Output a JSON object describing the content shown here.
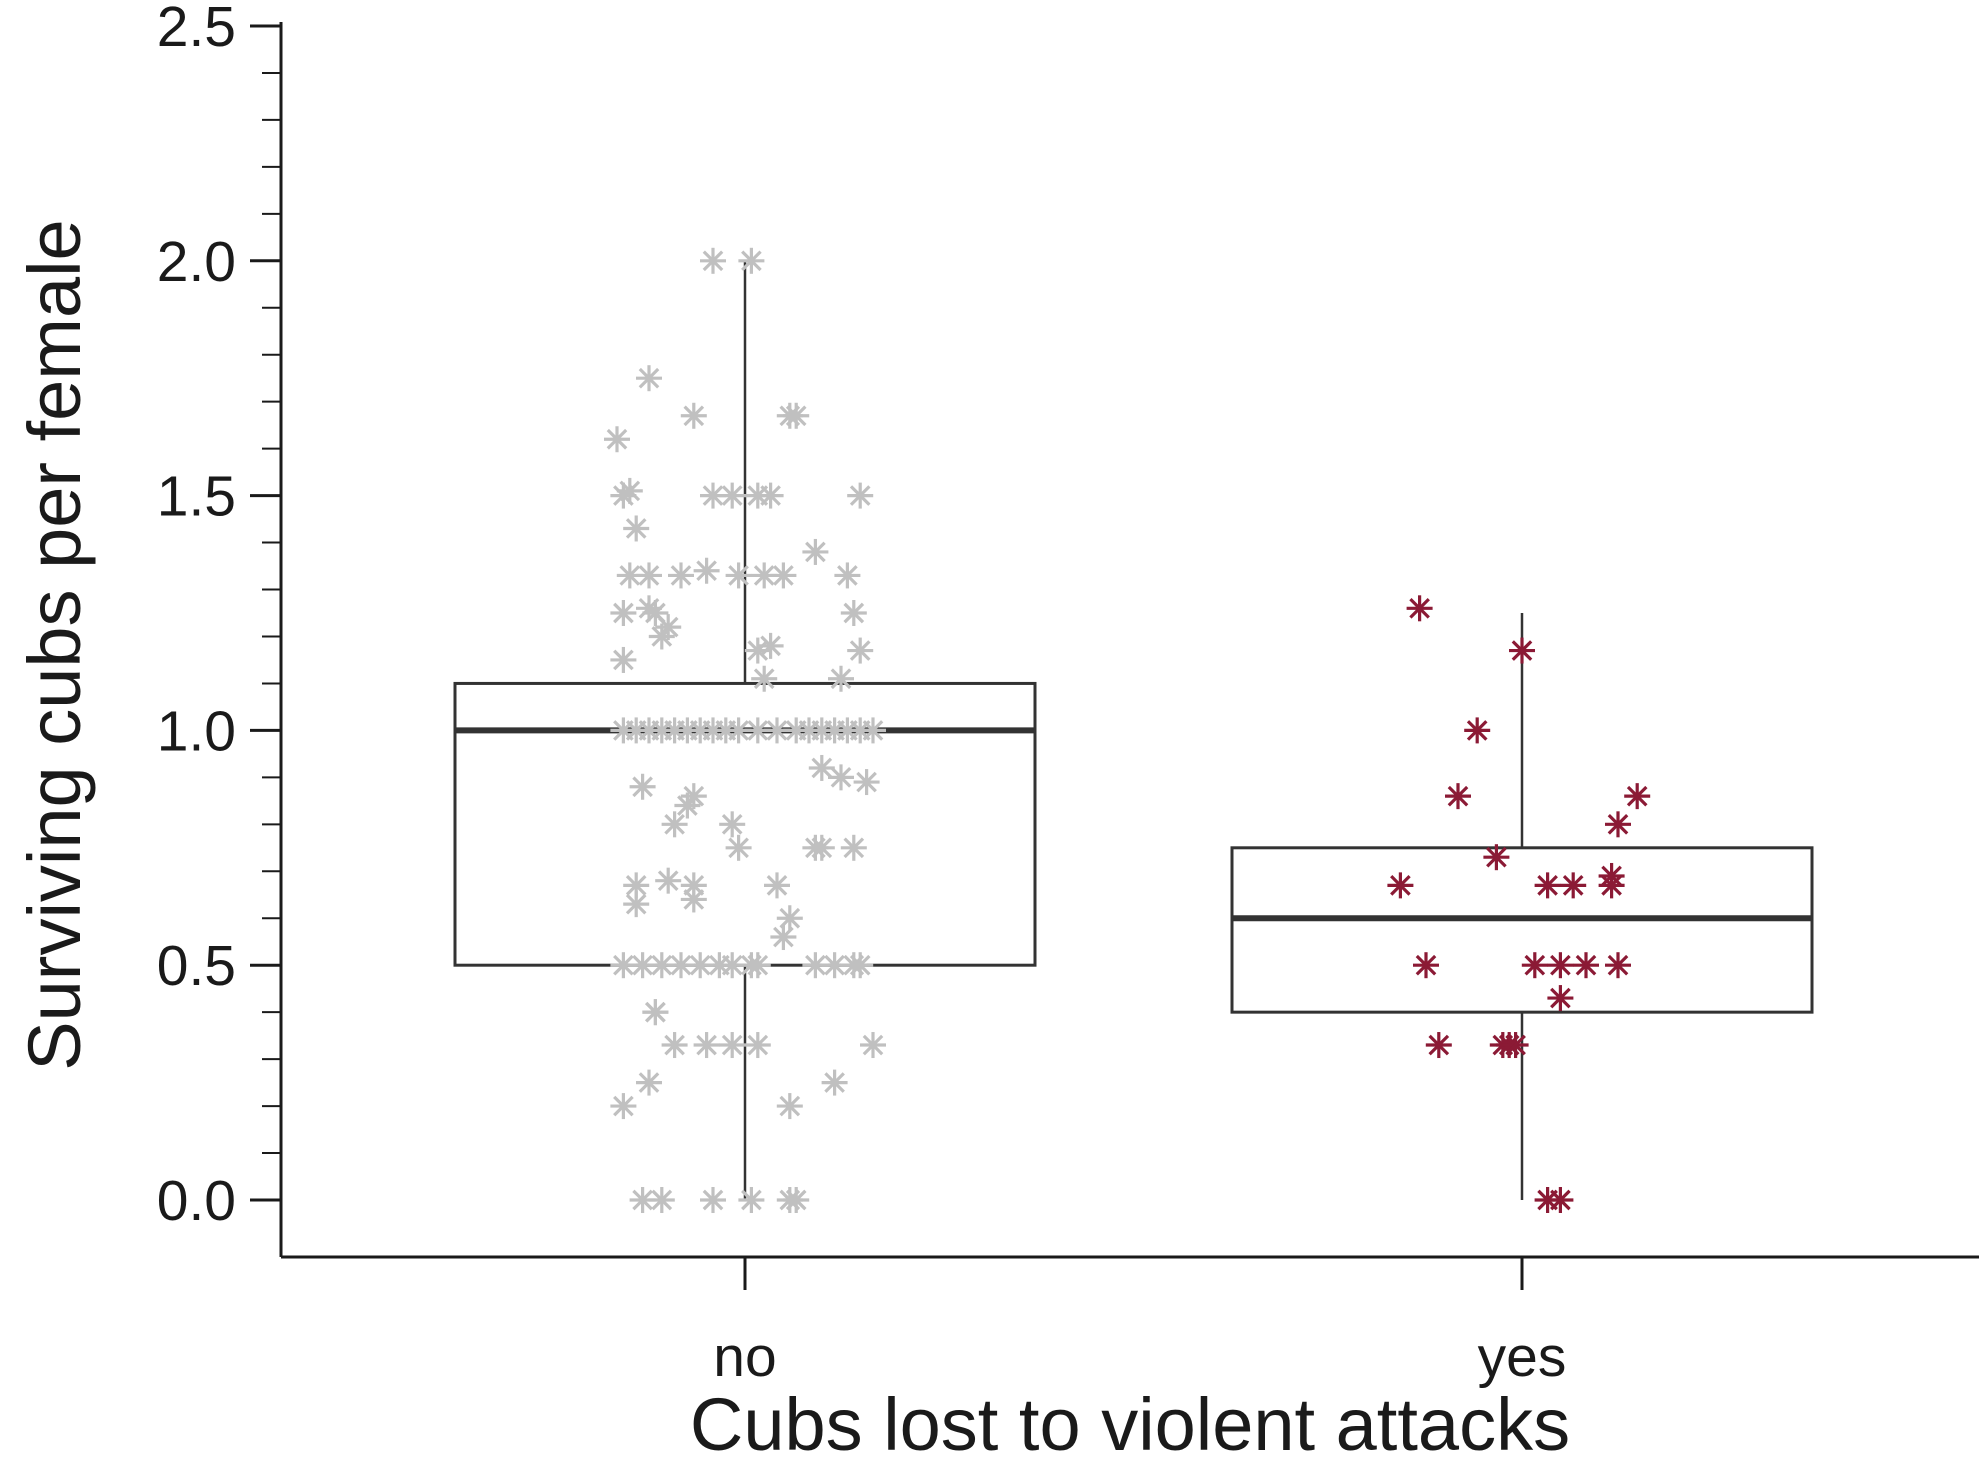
{
  "chart_data": {
    "type": "box",
    "title": "",
    "xlabel": "Cubs lost to violent attacks",
    "ylabel": "Surviving cubs per female",
    "ylim": [
      -0.12,
      2.5
    ],
    "y_ticks": [
      0.0,
      0.5,
      1.0,
      1.5,
      2.0,
      2.5
    ],
    "y_tick_labels": [
      "0.0",
      "0.5",
      "1.0",
      "1.5",
      "2.0",
      "2.5"
    ],
    "y_minor_step": 0.1,
    "categories": [
      "no",
      "yes"
    ],
    "marker": "asterisk",
    "series": [
      {
        "category": "no",
        "color": "#c0c0c0",
        "box": {
          "q1": 0.5,
          "median": 1.0,
          "q3": 1.1,
          "whisker_low": 0.0,
          "whisker_high": 2.0
        },
        "points": [
          {
            "x": -0.16,
            "y": 0.0
          },
          {
            "x": -0.13,
            "y": 0.0
          },
          {
            "x": -0.05,
            "y": 0.0
          },
          {
            "x": 0.01,
            "y": 0.0
          },
          {
            "x": 0.07,
            "y": 0.0
          },
          {
            "x": 0.08,
            "y": 0.0
          },
          {
            "x": -0.19,
            "y": 0.2
          },
          {
            "x": 0.07,
            "y": 0.2
          },
          {
            "x": -0.15,
            "y": 0.25
          },
          {
            "x": 0.14,
            "y": 0.25
          },
          {
            "x": -0.11,
            "y": 0.33
          },
          {
            "x": -0.06,
            "y": 0.33
          },
          {
            "x": -0.02,
            "y": 0.33
          },
          {
            "x": 0.02,
            "y": 0.33
          },
          {
            "x": 0.2,
            "y": 0.33
          },
          {
            "x": -0.14,
            "y": 0.4
          },
          {
            "x": -0.14,
            "y": 0.4
          },
          {
            "x": -0.19,
            "y": 0.5
          },
          {
            "x": -0.16,
            "y": 0.5
          },
          {
            "x": -0.13,
            "y": 0.5
          },
          {
            "x": -0.1,
            "y": 0.5
          },
          {
            "x": -0.07,
            "y": 0.5
          },
          {
            "x": -0.04,
            "y": 0.5
          },
          {
            "x": -0.02,
            "y": 0.5
          },
          {
            "x": 0.01,
            "y": 0.5
          },
          {
            "x": 0.02,
            "y": 0.5
          },
          {
            "x": 0.11,
            "y": 0.5
          },
          {
            "x": 0.14,
            "y": 0.5
          },
          {
            "x": 0.17,
            "y": 0.5
          },
          {
            "x": 0.18,
            "y": 0.5
          },
          {
            "x": 0.06,
            "y": 0.56
          },
          {
            "x": 0.07,
            "y": 0.6
          },
          {
            "x": -0.17,
            "y": 0.63
          },
          {
            "x": -0.08,
            "y": 0.64
          },
          {
            "x": -0.08,
            "y": 0.67
          },
          {
            "x": -0.17,
            "y": 0.67
          },
          {
            "x": -0.12,
            "y": 0.68
          },
          {
            "x": 0.05,
            "y": 0.67
          },
          {
            "x": -0.01,
            "y": 0.75
          },
          {
            "x": 0.11,
            "y": 0.75
          },
          {
            "x": 0.12,
            "y": 0.75
          },
          {
            "x": 0.17,
            "y": 0.75
          },
          {
            "x": -0.11,
            "y": 0.8
          },
          {
            "x": -0.02,
            "y": 0.8
          },
          {
            "x": -0.09,
            "y": 0.84
          },
          {
            "x": -0.08,
            "y": 0.86
          },
          {
            "x": -0.16,
            "y": 0.88
          },
          {
            "x": 0.19,
            "y": 0.89
          },
          {
            "x": 0.15,
            "y": 0.9
          },
          {
            "x": 0.12,
            "y": 0.92
          },
          {
            "x": -0.19,
            "y": 1.0
          },
          {
            "x": -0.17,
            "y": 1.0
          },
          {
            "x": -0.15,
            "y": 1.0
          },
          {
            "x": -0.13,
            "y": 1.0
          },
          {
            "x": -0.11,
            "y": 1.0
          },
          {
            "x": -0.09,
            "y": 1.0
          },
          {
            "x": -0.07,
            "y": 1.0
          },
          {
            "x": -0.05,
            "y": 1.0
          },
          {
            "x": -0.03,
            "y": 1.0
          },
          {
            "x": -0.01,
            "y": 1.0
          },
          {
            "x": 0.02,
            "y": 1.0
          },
          {
            "x": 0.05,
            "y": 1.0
          },
          {
            "x": 0.08,
            "y": 1.0
          },
          {
            "x": 0.1,
            "y": 1.0
          },
          {
            "x": 0.12,
            "y": 1.0
          },
          {
            "x": 0.14,
            "y": 1.0
          },
          {
            "x": 0.16,
            "y": 1.0
          },
          {
            "x": 0.18,
            "y": 1.0
          },
          {
            "x": 0.2,
            "y": 1.0
          },
          {
            "x": 0.15,
            "y": 1.11
          },
          {
            "x": 0.03,
            "y": 1.11
          },
          {
            "x": -0.19,
            "y": 1.15
          },
          {
            "x": 0.02,
            "y": 1.17
          },
          {
            "x": 0.04,
            "y": 1.18
          },
          {
            "x": 0.18,
            "y": 1.17
          },
          {
            "x": -0.13,
            "y": 1.2
          },
          {
            "x": -0.12,
            "y": 1.22
          },
          {
            "x": -0.19,
            "y": 1.25
          },
          {
            "x": -0.15,
            "y": 1.26
          },
          {
            "x": -0.14,
            "y": 1.25
          },
          {
            "x": 0.17,
            "y": 1.25
          },
          {
            "x": -0.18,
            "y": 1.33
          },
          {
            "x": -0.15,
            "y": 1.33
          },
          {
            "x": -0.1,
            "y": 1.33
          },
          {
            "x": -0.06,
            "y": 1.34
          },
          {
            "x": -0.01,
            "y": 1.33
          },
          {
            "x": 0.03,
            "y": 1.33
          },
          {
            "x": 0.06,
            "y": 1.33
          },
          {
            "x": 0.16,
            "y": 1.33
          },
          {
            "x": 0.11,
            "y": 1.38
          },
          {
            "x": -0.17,
            "y": 1.43
          },
          {
            "x": -0.19,
            "y": 1.5
          },
          {
            "x": -0.18,
            "y": 1.51
          },
          {
            "x": -0.05,
            "y": 1.5
          },
          {
            "x": -0.02,
            "y": 1.5
          },
          {
            "x": 0.02,
            "y": 1.5
          },
          {
            "x": 0.04,
            "y": 1.5
          },
          {
            "x": 0.18,
            "y": 1.5
          },
          {
            "x": -0.2,
            "y": 1.62
          },
          {
            "x": -0.08,
            "y": 1.67
          },
          {
            "x": 0.07,
            "y": 1.67
          },
          {
            "x": 0.08,
            "y": 1.67
          },
          {
            "x": -0.15,
            "y": 1.75
          },
          {
            "x": -0.05,
            "y": 2.0
          },
          {
            "x": 0.01,
            "y": 2.0
          }
        ]
      },
      {
        "category": "yes",
        "color": "#8b1a35",
        "box": {
          "q1": 0.4,
          "median": 0.6,
          "q3": 0.75,
          "whisker_low": 0.0,
          "whisker_high": 1.25
        },
        "points": [
          {
            "x": 0.04,
            "y": 0.0
          },
          {
            "x": 0.06,
            "y": 0.0
          },
          {
            "x": -0.13,
            "y": 0.33
          },
          {
            "x": -0.03,
            "y": 0.33
          },
          {
            "x": -0.02,
            "y": 0.33
          },
          {
            "x": -0.01,
            "y": 0.33
          },
          {
            "x": 0.06,
            "y": 0.43
          },
          {
            "x": -0.15,
            "y": 0.5
          },
          {
            "x": 0.02,
            "y": 0.5
          },
          {
            "x": 0.06,
            "y": 0.5
          },
          {
            "x": 0.1,
            "y": 0.5
          },
          {
            "x": 0.15,
            "y": 0.5
          },
          {
            "x": -0.19,
            "y": 0.67
          },
          {
            "x": 0.04,
            "y": 0.67
          },
          {
            "x": 0.08,
            "y": 0.67
          },
          {
            "x": 0.14,
            "y": 0.67
          },
          {
            "x": 0.14,
            "y": 0.69
          },
          {
            "x": -0.04,
            "y": 0.73
          },
          {
            "x": 0.15,
            "y": 0.8
          },
          {
            "x": -0.1,
            "y": 0.86
          },
          {
            "x": 0.18,
            "y": 0.86
          },
          {
            "x": -0.07,
            "y": 1.0
          },
          {
            "x": 0.0,
            "y": 1.17
          },
          {
            "x": -0.16,
            "y": 1.26
          }
        ]
      }
    ]
  }
}
